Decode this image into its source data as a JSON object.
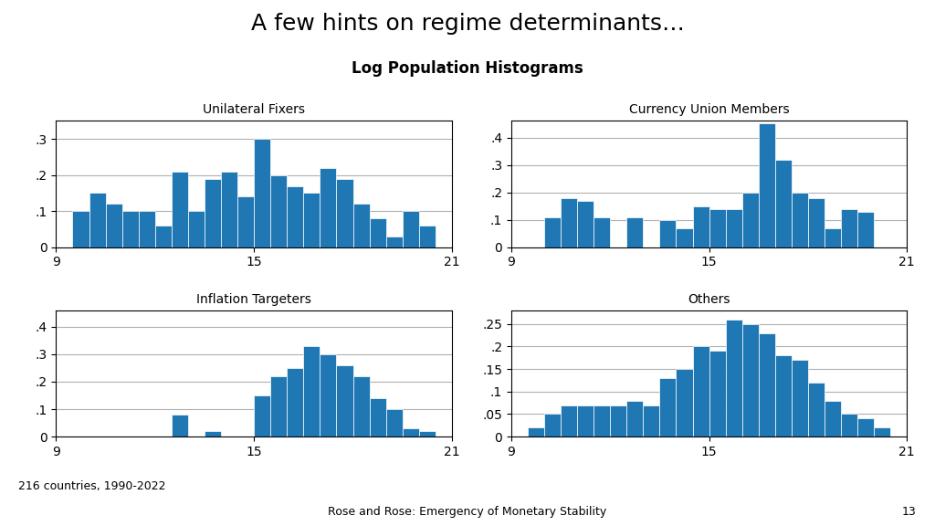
{
  "title": "A few hints on regime determinants…",
  "subtitle": "Log Population Histograms",
  "annotations": [
    "216 countries, 1990-2022",
    "Rose and Rose: Emergency of Monetary Stability",
    "13"
  ],
  "chart_data": [
    {
      "type": "histogram",
      "title": "Unilateral Fixers",
      "bins": [
        9.0,
        9.5,
        10.0,
        10.5,
        11.0,
        11.5,
        12.0,
        12.5,
        13.0,
        13.5,
        14.0,
        14.5,
        15.0,
        15.5,
        16.0,
        16.5,
        17.0,
        17.5,
        18.0,
        18.5,
        19.0,
        19.5,
        20.0,
        20.5,
        21.0
      ],
      "values": [
        0.0,
        0.1,
        0.15,
        0.12,
        0.1,
        0.1,
        0.06,
        0.21,
        0.1,
        0.19,
        0.21,
        0.14,
        0.3,
        0.2,
        0.17,
        0.15,
        0.22,
        0.19,
        0.12,
        0.08,
        0.03,
        0.1,
        0.06,
        0.0
      ],
      "xlim": [
        9,
        21
      ],
      "xticks": [
        9,
        15,
        21
      ],
      "ylim": [
        0,
        0.35
      ],
      "yticks": [
        0,
        {
          "value": 0.1,
          "label": ".1"
        },
        {
          "value": 0.2,
          "label": ".2"
        },
        {
          "value": 0.3,
          "label": ".3"
        }
      ],
      "grid": "y"
    },
    {
      "type": "histogram",
      "title": "Currency Union Members",
      "bins": [
        9.0,
        9.5,
        10.0,
        10.5,
        11.0,
        11.5,
        12.0,
        12.5,
        13.0,
        13.5,
        14.0,
        14.5,
        15.0,
        15.5,
        16.0,
        16.5,
        17.0,
        17.5,
        18.0,
        18.5,
        19.0,
        19.5,
        20.0,
        20.5,
        21.0
      ],
      "values": [
        0.0,
        0.0,
        0.11,
        0.18,
        0.17,
        0.11,
        0.0,
        0.11,
        0.0,
        0.1,
        0.07,
        0.15,
        0.14,
        0.14,
        0.2,
        0.45,
        0.32,
        0.2,
        0.18,
        0.07,
        0.14,
        0.13,
        0.0,
        0.0
      ],
      "xlim": [
        9,
        21
      ],
      "xticks": [
        9,
        15,
        21
      ],
      "ylim": [
        0,
        0.46
      ],
      "yticks": [
        0,
        {
          "value": 0.1,
          "label": ".1"
        },
        {
          "value": 0.2,
          "label": ".2"
        },
        {
          "value": 0.3,
          "label": ".3"
        },
        {
          "value": 0.4,
          "label": ".4"
        }
      ],
      "grid": "y"
    },
    {
      "type": "histogram",
      "title": "Inflation Targeters",
      "bins": [
        9.0,
        9.5,
        10.0,
        10.5,
        11.0,
        11.5,
        12.0,
        12.5,
        13.0,
        13.5,
        14.0,
        14.5,
        15.0,
        15.5,
        16.0,
        16.5,
        17.0,
        17.5,
        18.0,
        18.5,
        19.0,
        19.5,
        20.0,
        20.5,
        21.0
      ],
      "values": [
        0.0,
        0.0,
        0.0,
        0.0,
        0.0,
        0.0,
        0.0,
        0.08,
        0.0,
        0.02,
        0.0,
        0.0,
        0.15,
        0.22,
        0.25,
        0.33,
        0.3,
        0.26,
        0.22,
        0.14,
        0.1,
        0.03,
        0.02,
        0.0
      ],
      "xlim": [
        9,
        21
      ],
      "xticks": [
        9,
        15,
        21
      ],
      "ylim": [
        0,
        0.46
      ],
      "yticks": [
        0,
        {
          "value": 0.1,
          "label": ".1"
        },
        {
          "value": 0.2,
          "label": ".2"
        },
        {
          "value": 0.3,
          "label": ".3"
        },
        {
          "value": 0.4,
          "label": ".4"
        }
      ],
      "grid": "y"
    },
    {
      "type": "histogram",
      "title": "Others",
      "bins": [
        9.0,
        9.5,
        10.0,
        10.5,
        11.0,
        11.5,
        12.0,
        12.5,
        13.0,
        13.5,
        14.0,
        14.5,
        15.0,
        15.5,
        16.0,
        16.5,
        17.0,
        17.5,
        18.0,
        18.5,
        19.0,
        19.5,
        20.0,
        20.5,
        21.0
      ],
      "values": [
        0.0,
        0.02,
        0.05,
        0.07,
        0.07,
        0.07,
        0.07,
        0.08,
        0.07,
        0.13,
        0.15,
        0.2,
        0.19,
        0.26,
        0.25,
        0.23,
        0.18,
        0.17,
        0.12,
        0.08,
        0.05,
        0.04,
        0.02,
        0.0
      ],
      "xlim": [
        9,
        21
      ],
      "xticks": [
        9,
        15,
        21
      ],
      "ylim": [
        0,
        0.28
      ],
      "yticks": [
        0,
        {
          "value": 0.05,
          "label": ".05"
        },
        {
          "value": 0.1,
          "label": ".1"
        },
        {
          "value": 0.15,
          "label": ".15"
        },
        {
          "value": 0.2,
          "label": ".2"
        },
        {
          "value": 0.25,
          "label": ".25"
        }
      ],
      "grid": "y"
    }
  ]
}
